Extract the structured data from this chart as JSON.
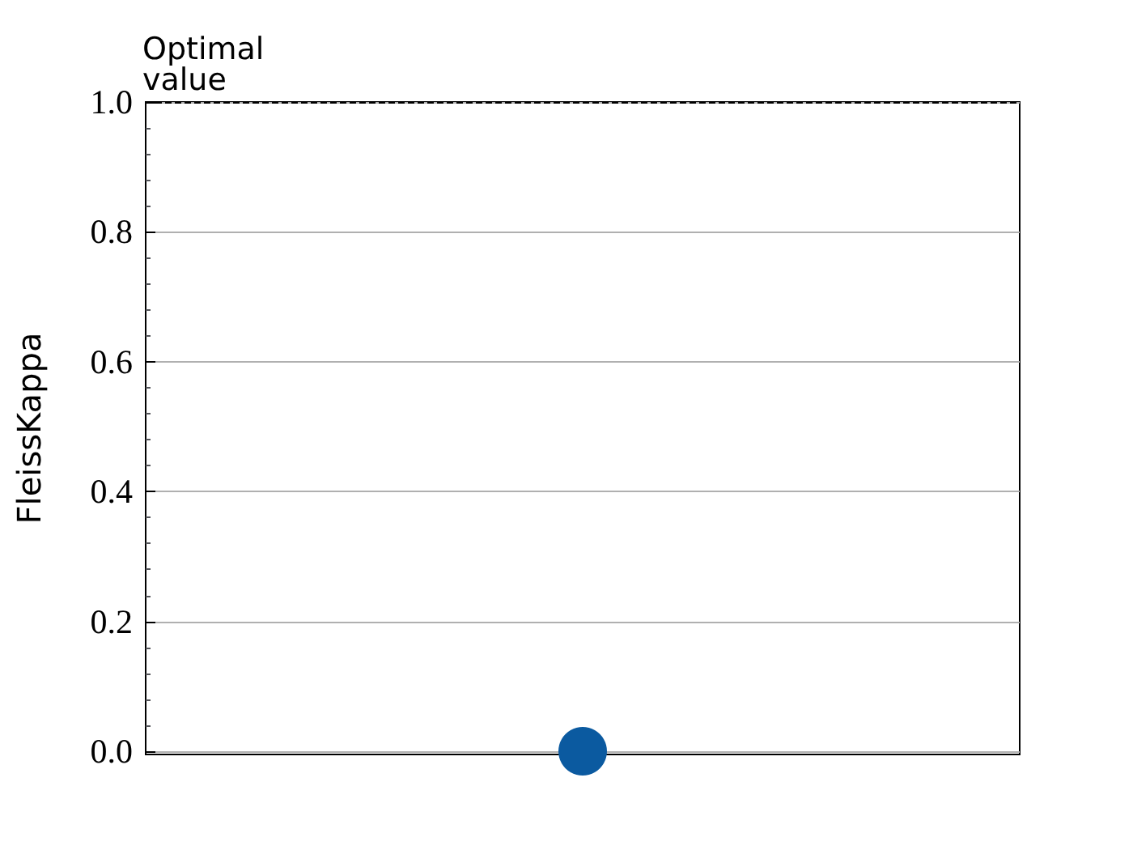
{
  "chart_data": {
    "type": "scatter",
    "ylabel": "FleissKappa",
    "categories": [
      null
    ],
    "series": [
      {
        "color": "#0b5aa0",
        "values": [
          0
        ]
      }
    ],
    "ylim": [
      -0.005,
      1.0
    ],
    "yticks": [
      {
        "value": 0,
        "label": "0.0"
      },
      0.2,
      0.4,
      0.6,
      0.8,
      {
        "value": 1,
        "label": "1.0"
      }
    ],
    "ref_lines": [
      {
        "axis": "y",
        "value": 1,
        "label": "Optimal value",
        "line_style": "dashed"
      }
    ],
    "grid": "y",
    "marker": "circle",
    "tick_labels": "y"
  }
}
